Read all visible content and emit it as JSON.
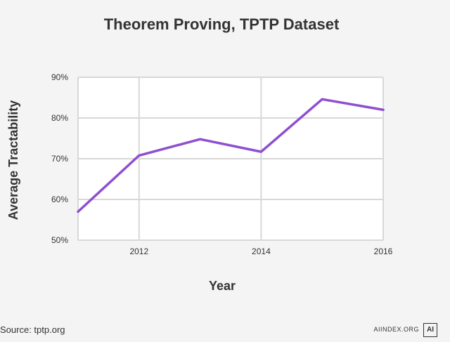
{
  "chart_data": {
    "type": "line",
    "title": "Theorem Proving, TPTP Dataset",
    "xlabel": "Year",
    "ylabel": "Average Tractability",
    "x": [
      2011,
      2012,
      2013,
      2014,
      2015,
      2016
    ],
    "series": [
      {
        "values": [
          57,
          70.8,
          74.8,
          71.7,
          84.6,
          82.0
        ]
      }
    ],
    "xlim": [
      2011,
      2016
    ],
    "ylim": [
      50,
      90
    ],
    "x_ticks": [
      2012,
      2014,
      2016
    ],
    "y_ticks": [
      50,
      60,
      70,
      80,
      90
    ],
    "y_tick_labels": [
      "50%",
      "60%",
      "70%",
      "80%",
      "90%"
    ],
    "grid": true,
    "line_color": "#8e4fd0",
    "grid_color": "#d8d8d8"
  },
  "footer": {
    "source": "Source: tptp.org",
    "credit": "AIINDEX.ORG",
    "mark": "AI"
  }
}
